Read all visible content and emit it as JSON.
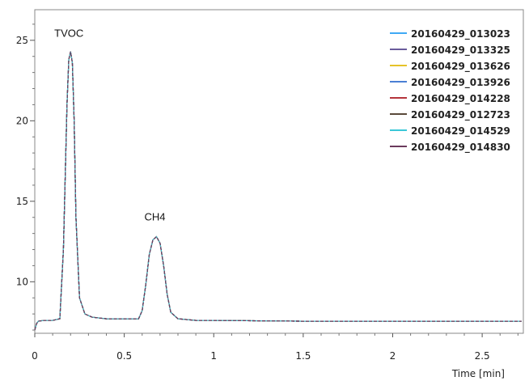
{
  "chart_data": {
    "type": "line",
    "xlabel": "Time [min]",
    "ylabel": "",
    "xlim": [
      0,
      2.73
    ],
    "ylim": [
      6.8,
      26.9
    ],
    "x_ticks": [
      0,
      0.5,
      1,
      1.5,
      2,
      2.5
    ],
    "x_tick_labels": [
      "0",
      "0.5",
      "1",
      "1.5",
      "2",
      "2.5"
    ],
    "y_ticks": [
      10,
      15,
      20,
      25
    ],
    "y_tick_labels": [
      "10",
      "15",
      "20",
      "25"
    ],
    "grid": false,
    "legend_position": "top-right",
    "annotations": [
      {
        "text": "TVOC",
        "x": 0.2,
        "y": 24.2
      },
      {
        "text": "CH4",
        "x": 0.68,
        "y": 12.8
      }
    ],
    "x": [
      0,
      0.01,
      0.02,
      0.05,
      0.1,
      0.14,
      0.16,
      0.18,
      0.19,
      0.2,
      0.21,
      0.22,
      0.23,
      0.25,
      0.28,
      0.32,
      0.4,
      0.5,
      0.58,
      0.6,
      0.62,
      0.64,
      0.66,
      0.68,
      0.7,
      0.72,
      0.74,
      0.76,
      0.8,
      0.9,
      1.0,
      1.5,
      2.0,
      2.5,
      2.72
    ],
    "series": [
      {
        "name": "20160429_013023",
        "color": "#3fa9f5",
        "values": [
          7.0,
          7.4,
          7.55,
          7.6,
          7.6,
          7.7,
          12.0,
          21.0,
          23.8,
          24.3,
          23.6,
          20.0,
          14.0,
          9.0,
          8.0,
          7.8,
          7.7,
          7.7,
          7.7,
          8.2,
          9.8,
          11.7,
          12.6,
          12.8,
          12.4,
          11.0,
          9.2,
          8.1,
          7.7,
          7.6,
          7.6,
          7.55,
          7.55,
          7.55,
          7.55
        ]
      },
      {
        "name": "20160429_013325",
        "color": "#6a5b9c",
        "values": [
          7.0,
          7.4,
          7.55,
          7.6,
          7.6,
          7.7,
          12.0,
          21.0,
          23.8,
          24.3,
          23.6,
          20.0,
          14.0,
          9.0,
          8.0,
          7.8,
          7.7,
          7.7,
          7.7,
          8.2,
          9.8,
          11.7,
          12.6,
          12.8,
          12.4,
          11.0,
          9.2,
          8.1,
          7.7,
          7.6,
          7.6,
          7.55,
          7.55,
          7.55,
          7.55
        ]
      },
      {
        "name": "20160429_013626",
        "color": "#e6c229",
        "values": [
          7.0,
          7.4,
          7.55,
          7.6,
          7.6,
          7.7,
          12.0,
          21.0,
          23.8,
          24.3,
          23.6,
          20.0,
          14.0,
          9.0,
          8.0,
          7.8,
          7.7,
          7.7,
          7.7,
          8.2,
          9.8,
          11.7,
          12.6,
          12.8,
          12.4,
          11.0,
          9.2,
          8.1,
          7.7,
          7.6,
          7.6,
          7.55,
          7.55,
          7.55,
          7.55
        ]
      },
      {
        "name": "20160429_013926",
        "color": "#4a7fd4",
        "values": [
          7.0,
          7.4,
          7.55,
          7.6,
          7.6,
          7.7,
          12.0,
          21.0,
          23.8,
          24.3,
          23.6,
          20.0,
          14.0,
          9.0,
          8.0,
          7.8,
          7.7,
          7.7,
          7.7,
          8.2,
          9.8,
          11.7,
          12.6,
          12.8,
          12.4,
          11.0,
          9.2,
          8.1,
          7.7,
          7.6,
          7.6,
          7.55,
          7.55,
          7.55,
          7.55
        ]
      },
      {
        "name": "20160429_014228",
        "color": "#b5343c",
        "values": [
          7.0,
          7.4,
          7.55,
          7.6,
          7.6,
          7.7,
          12.0,
          21.0,
          23.8,
          24.3,
          23.6,
          20.0,
          14.0,
          9.0,
          8.0,
          7.8,
          7.7,
          7.7,
          7.7,
          8.2,
          9.8,
          11.7,
          12.6,
          12.8,
          12.4,
          11.0,
          9.2,
          8.1,
          7.7,
          7.6,
          7.6,
          7.55,
          7.55,
          7.55,
          7.55
        ]
      },
      {
        "name": "20160429_012723",
        "color": "#5a4a3a",
        "values": [
          7.0,
          7.4,
          7.55,
          7.6,
          7.6,
          7.7,
          12.0,
          21.0,
          23.8,
          24.3,
          23.6,
          20.0,
          14.0,
          9.0,
          8.0,
          7.8,
          7.7,
          7.7,
          7.7,
          8.2,
          9.8,
          11.7,
          12.6,
          12.8,
          12.4,
          11.0,
          9.2,
          8.1,
          7.7,
          7.6,
          7.6,
          7.55,
          7.55,
          7.55,
          7.55
        ]
      },
      {
        "name": "20160429_014529",
        "color": "#3cc8d8",
        "values": [
          7.0,
          7.4,
          7.55,
          7.6,
          7.6,
          7.7,
          12.0,
          21.0,
          23.8,
          24.3,
          23.6,
          20.0,
          14.0,
          9.0,
          8.0,
          7.8,
          7.7,
          7.7,
          7.7,
          8.2,
          9.8,
          11.7,
          12.6,
          12.8,
          12.4,
          11.0,
          9.2,
          8.1,
          7.7,
          7.6,
          7.6,
          7.55,
          7.55,
          7.55,
          7.55
        ]
      },
      {
        "name": "20160429_014830",
        "color": "#6b3a5c",
        "values": [
          7.0,
          7.4,
          7.55,
          7.6,
          7.6,
          7.7,
          12.0,
          21.0,
          23.8,
          24.3,
          23.6,
          20.0,
          14.0,
          9.0,
          8.0,
          7.8,
          7.7,
          7.7,
          7.7,
          8.2,
          9.8,
          11.7,
          12.6,
          12.8,
          12.4,
          11.0,
          9.2,
          8.1,
          7.7,
          7.6,
          7.6,
          7.55,
          7.55,
          7.55,
          7.55
        ]
      }
    ]
  }
}
